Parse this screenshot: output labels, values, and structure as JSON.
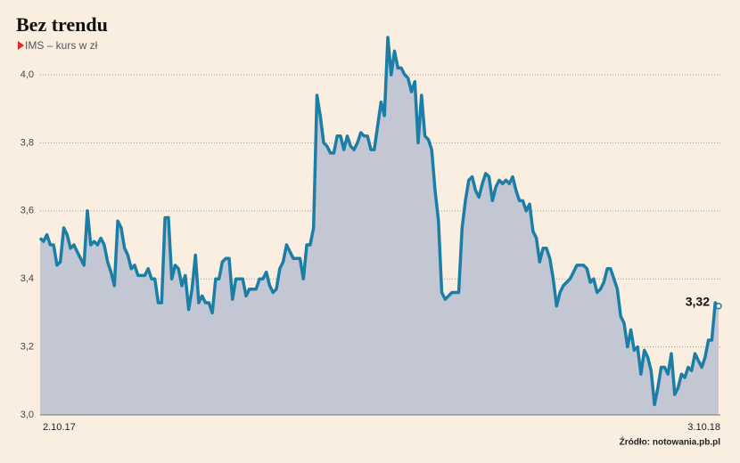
{
  "chart_data": {
    "type": "area",
    "title": "Bez trendu",
    "subtitle": "IMS – kurs w zł",
    "source": "Źródło: notowania.pb.pl",
    "line_color": "#1b7ea6",
    "fill_color": "#c3c7d3",
    "grid": true,
    "ylim": [
      3.0,
      4.12
    ],
    "yticks": [
      {
        "value": 3.0,
        "label": "3,0"
      },
      {
        "value": 3.2,
        "label": "3,2"
      },
      {
        "value": 3.4,
        "label": "3,4"
      },
      {
        "value": 3.6,
        "label": "3,6"
      },
      {
        "value": 3.8,
        "label": "3,8"
      },
      {
        "value": 4.0,
        "label": "4,0"
      }
    ],
    "categories": [
      "2.10.17",
      null,
      null,
      null,
      null,
      null,
      null,
      null,
      null,
      null,
      null,
      null,
      null,
      null,
      null,
      null,
      null,
      null,
      null,
      null,
      null,
      null,
      null,
      null,
      null,
      null,
      null,
      null,
      null,
      null,
      null,
      null,
      null,
      null,
      null,
      null,
      null,
      null,
      null,
      null,
      null,
      null,
      null,
      null,
      null,
      null,
      null,
      null,
      null,
      null,
      null,
      null,
      null,
      null,
      null,
      null,
      null,
      null,
      null,
      null,
      null,
      null,
      null,
      null,
      null,
      null,
      null,
      null,
      null,
      null,
      null,
      null,
      null,
      null,
      null,
      null,
      null,
      null,
      null,
      null,
      null,
      null,
      null,
      null,
      null,
      null,
      null,
      null,
      null,
      null,
      null,
      null,
      null,
      null,
      null,
      null,
      null,
      null,
      null,
      null,
      null,
      null,
      null,
      null,
      null,
      null,
      null,
      null,
      null,
      null,
      null,
      null,
      null,
      null,
      null,
      null,
      null,
      null,
      null,
      null,
      null,
      null,
      null,
      null,
      null,
      null,
      null,
      null,
      null,
      null,
      null,
      null,
      null,
      null,
      null,
      null,
      null,
      null,
      null,
      null,
      null,
      null,
      null,
      null,
      null,
      null,
      null,
      null,
      null,
      null,
      null,
      null,
      null,
      null,
      null,
      null,
      null,
      null,
      null,
      null,
      null,
      null,
      null,
      null,
      null,
      null,
      null,
      null,
      null,
      null,
      null,
      null,
      null,
      null,
      null,
      null,
      null,
      null,
      null,
      null,
      null,
      null,
      null,
      null,
      null,
      null,
      null,
      null,
      null,
      null,
      null,
      null,
      null,
      null,
      null,
      null,
      null,
      null,
      null,
      null,
      null,
      "3.10.18"
    ],
    "values": [
      3.52,
      3.51,
      3.53,
      3.5,
      3.5,
      3.44,
      3.45,
      3.55,
      3.53,
      3.49,
      3.5,
      3.48,
      3.46,
      3.44,
      3.6,
      3.5,
      3.51,
      3.5,
      3.52,
      3.5,
      3.45,
      3.42,
      3.38,
      3.57,
      3.55,
      3.49,
      3.47,
      3.43,
      3.44,
      3.41,
      3.41,
      3.41,
      3.43,
      3.4,
      3.4,
      3.33,
      3.33,
      3.58,
      3.58,
      3.4,
      3.44,
      3.43,
      3.38,
      3.41,
      3.31,
      3.37,
      3.47,
      3.33,
      3.35,
      3.33,
      3.33,
      3.3,
      3.4,
      3.4,
      3.45,
      3.46,
      3.46,
      3.34,
      3.4,
      3.4,
      3.4,
      3.35,
      3.37,
      3.37,
      3.37,
      3.4,
      3.4,
      3.42,
      3.38,
      3.36,
      3.37,
      3.43,
      3.45,
      3.5,
      3.48,
      3.46,
      3.46,
      3.46,
      3.4,
      3.5,
      3.5,
      3.55,
      3.94,
      3.88,
      3.8,
      3.79,
      3.77,
      3.77,
      3.82,
      3.82,
      3.78,
      3.82,
      3.79,
      3.78,
      3.8,
      3.83,
      3.82,
      3.82,
      3.78,
      3.78,
      3.85,
      3.92,
      3.88,
      4.11,
      4.0,
      4.07,
      4.02,
      4.02,
      4.0,
      3.99,
      3.95,
      3.98,
      3.8,
      3.94,
      3.82,
      3.81,
      3.78,
      3.66,
      3.57,
      3.36,
      3.34,
      3.35,
      3.36,
      3.36,
      3.36,
      3.55,
      3.63,
      3.69,
      3.7,
      3.66,
      3.64,
      3.68,
      3.71,
      3.7,
      3.63,
      3.67,
      3.69,
      3.68,
      3.69,
      3.68,
      3.7,
      3.66,
      3.63,
      3.63,
      3.6,
      3.62,
      3.54,
      3.52,
      3.45,
      3.49,
      3.49,
      3.46,
      3.4,
      3.32,
      3.36,
      3.38,
      3.39,
      3.4,
      3.42,
      3.44,
      3.44,
      3.44,
      3.43,
      3.39,
      3.4,
      3.36,
      3.37,
      3.39,
      3.43,
      3.43,
      3.4,
      3.37,
      3.29,
      3.27,
      3.2,
      3.25,
      3.19,
      3.2,
      3.12,
      3.19,
      3.17,
      3.13,
      3.03,
      3.08,
      3.14,
      3.14,
      3.12,
      3.18,
      3.06,
      3.08,
      3.12,
      3.11,
      3.14,
      3.13,
      3.18,
      3.16,
      3.14,
      3.17,
      3.22,
      3.22,
      3.33,
      3.32
    ],
    "value_labels": [
      null,
      null,
      null,
      null,
      null,
      null,
      null,
      null,
      null,
      null,
      null,
      null,
      null,
      null,
      null,
      null,
      null,
      null,
      null,
      null,
      null,
      null,
      null,
      null,
      null,
      null,
      null,
      null,
      null,
      null,
      null,
      null,
      null,
      null,
      null,
      null,
      null,
      null,
      null,
      null,
      null,
      null,
      null,
      null,
      null,
      null,
      null,
      null,
      null,
      null,
      null,
      null,
      null,
      null,
      null,
      null,
      null,
      null,
      null,
      null,
      null,
      null,
      null,
      null,
      null,
      null,
      null,
      null,
      null,
      null,
      null,
      null,
      null,
      null,
      null,
      null,
      null,
      null,
      null,
      null,
      null,
      null,
      null,
      null,
      null,
      null,
      null,
      null,
      null,
      null,
      null,
      null,
      null,
      null,
      null,
      null,
      null,
      null,
      null,
      null,
      null,
      null,
      null,
      null,
      null,
      null,
      null,
      null,
      null,
      null,
      null,
      null,
      null,
      null,
      null,
      null,
      null,
      null,
      null,
      null,
      null,
      null,
      null,
      null,
      null,
      null,
      null,
      null,
      null,
      null,
      null,
      null,
      null,
      null,
      null,
      null,
      null,
      null,
      null,
      null,
      null,
      null,
      null,
      null,
      null,
      null,
      null,
      null,
      null,
      null,
      null,
      null,
      null,
      null,
      null,
      null,
      null,
      null,
      null,
      null,
      null,
      null,
      null,
      null,
      null,
      null,
      null,
      null,
      null,
      null,
      null,
      null,
      null,
      null,
      null,
      null,
      null,
      null,
      null,
      null,
      null,
      null,
      null,
      null,
      null,
      null,
      null,
      null,
      null,
      null,
      null,
      null,
      null,
      null,
      null,
      null,
      null,
      null,
      null,
      null,
      null,
      "3,32"
    ]
  }
}
